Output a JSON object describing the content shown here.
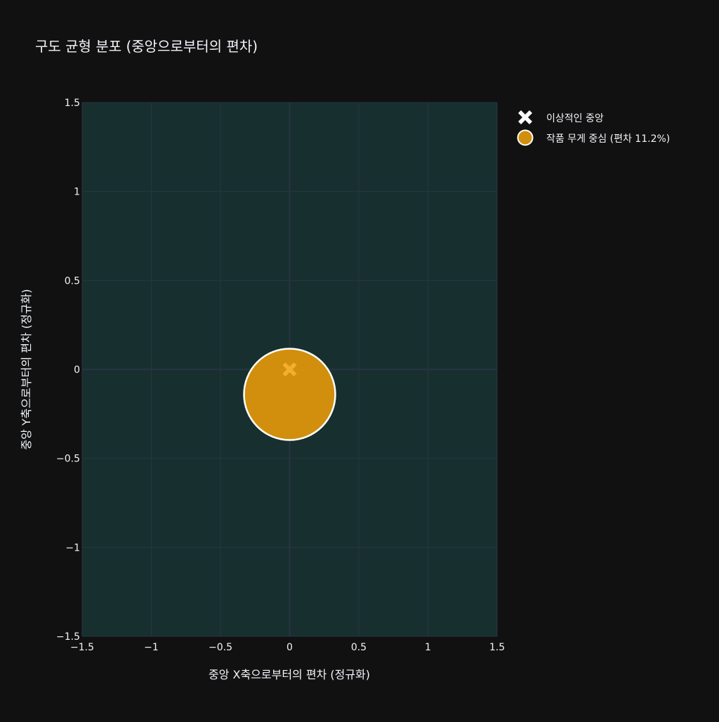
{
  "chart_data": {
    "type": "scatter",
    "title": "구도 균형 분포 (중앙으로부터의 편차)",
    "xlabel": "중앙 X축으로부터의 편차 (정규화)",
    "ylabel": "중앙 Y축으로부터의 편차 (정규화)",
    "xlim": [
      -1.5,
      1.5
    ],
    "ylim": [
      -1.5,
      1.5
    ],
    "x_ticks": [
      "−1.5",
      "−1",
      "−0.5",
      "0",
      "0.5",
      "1",
      "1.5"
    ],
    "y_ticks": [
      "−1.5",
      "−1",
      "−0.5",
      "0",
      "0.5",
      "1",
      "1.5"
    ],
    "tick_values": [
      -1.5,
      -1,
      -0.5,
      0,
      0.5,
      1,
      1.5
    ],
    "grid": true,
    "legend_placement": "top-right outside",
    "series": [
      {
        "name": "이상적인 중앙",
        "marker": "x",
        "color": "#ffffff",
        "x": [
          0
        ],
        "y": [
          0
        ]
      },
      {
        "name": "작품 무게 중심 (편차 11.2%)",
        "marker": "circle",
        "color": "#F2A007",
        "outline": "#ffffff",
        "x": [
          0
        ],
        "y": [
          -0.14
        ]
      }
    ]
  },
  "colors": {
    "paper": "#111111",
    "plot": "#17302F",
    "grid": "#283442"
  }
}
